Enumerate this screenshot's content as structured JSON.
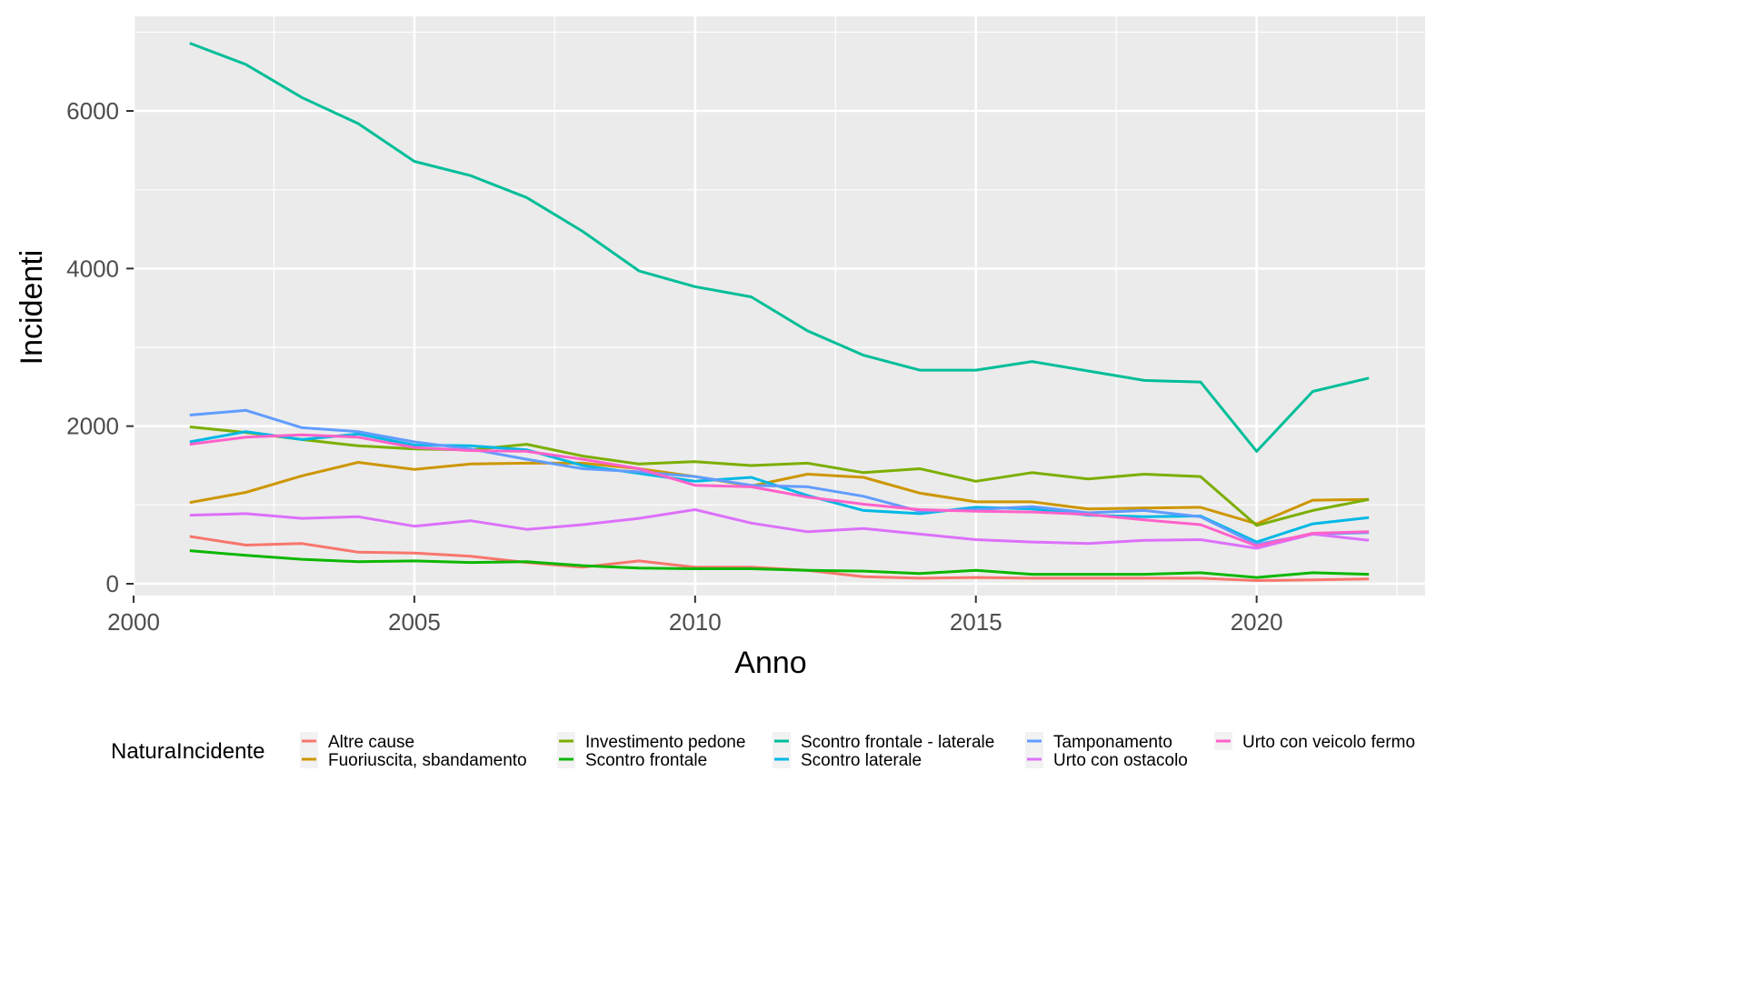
{
  "chart_data": {
    "type": "line",
    "xlabel": "Anno",
    "ylabel": "Incidenti",
    "xlim": [
      2000,
      2023
    ],
    "ylim": [
      -150,
      7200
    ],
    "x_ticks": [
      2000,
      2005,
      2010,
      2015,
      2020
    ],
    "y_ticks": [
      0,
      2000,
      4000,
      6000
    ],
    "grid": true,
    "legend": {
      "title": "NaturaIncidente",
      "position": "bottom"
    },
    "x": [
      2001,
      2002,
      2003,
      2004,
      2005,
      2006,
      2007,
      2008,
      2009,
      2010,
      2011,
      2012,
      2013,
      2014,
      2015,
      2016,
      2017,
      2018,
      2019,
      2020,
      2021,
      2022
    ],
    "series": [
      {
        "name": "Altre cause",
        "color": "#F8766D",
        "values": [
          600,
          490,
          510,
          400,
          390,
          350,
          270,
          210,
          290,
          210,
          210,
          170,
          90,
          70,
          80,
          70,
          70,
          70,
          70,
          40,
          50,
          60
        ]
      },
      {
        "name": "Fuoriuscita, sbandamento",
        "color": "#CD9600",
        "values": [
          1030,
          1160,
          1370,
          1540,
          1450,
          1520,
          1530,
          1530,
          1460,
          1360,
          1240,
          1390,
          1350,
          1150,
          1040,
          1040,
          950,
          960,
          970,
          760,
          1060,
          1070
        ]
      },
      {
        "name": "Investimento pedone",
        "color": "#7CAE00",
        "values": [
          1990,
          1920,
          1830,
          1750,
          1710,
          1700,
          1770,
          1620,
          1520,
          1550,
          1500,
          1530,
          1410,
          1460,
          1300,
          1410,
          1330,
          1390,
          1360,
          740,
          930,
          1070
        ]
      },
      {
        "name": "Scontro frontale",
        "color": "#0CB702",
        "values": [
          420,
          360,
          310,
          280,
          290,
          270,
          280,
          230,
          200,
          190,
          190,
          170,
          160,
          130,
          170,
          120,
          120,
          120,
          140,
          80,
          140,
          120
        ]
      },
      {
        "name": "Scontro frontale - laterale",
        "color": "#00BE99",
        "values": [
          6860,
          6590,
          6170,
          5840,
          5360,
          5180,
          4900,
          4470,
          3970,
          3770,
          3640,
          3210,
          2900,
          2710,
          2710,
          2820,
          2700,
          2580,
          2560,
          1680,
          2440,
          2610
        ]
      },
      {
        "name": "Scontro laterale",
        "color": "#00B8E5",
        "values": [
          1800,
          1930,
          1830,
          1900,
          1760,
          1750,
          1700,
          1500,
          1400,
          1300,
          1350,
          1120,
          930,
          890,
          970,
          950,
          870,
          850,
          860,
          530,
          760,
          840
        ]
      },
      {
        "name": "Tamponamento",
        "color": "#619CFF",
        "values": [
          2140,
          2200,
          1980,
          1930,
          1800,
          1710,
          1580,
          1460,
          1420,
          1360,
          1250,
          1230,
          1110,
          920,
          940,
          980,
          900,
          930,
          850,
          500,
          630,
          650
        ]
      },
      {
        "name": "Urto con ostacolo",
        "color": "#DC71FA",
        "values": [
          870,
          890,
          830,
          850,
          730,
          800,
          690,
          750,
          830,
          940,
          770,
          660,
          700,
          630,
          560,
          530,
          510,
          550,
          560,
          450,
          630,
          550
        ]
      },
      {
        "name": "Urto con veicolo fermo",
        "color": "#FF61C9",
        "values": [
          1770,
          1860,
          1890,
          1860,
          1730,
          1690,
          1680,
          1580,
          1460,
          1250,
          1230,
          1100,
          1010,
          940,
          920,
          910,
          880,
          810,
          750,
          480,
          640,
          660
        ]
      }
    ]
  }
}
